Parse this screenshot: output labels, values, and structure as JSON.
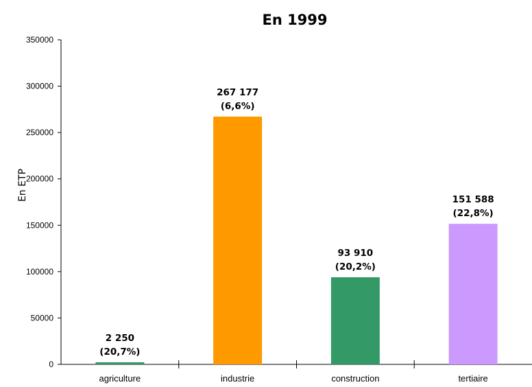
{
  "chart_data": {
    "type": "bar",
    "title": "En 1999",
    "xlabel": "",
    "ylabel": "En ETP",
    "ylim": [
      0,
      350000
    ],
    "yticks": [
      0,
      50000,
      100000,
      150000,
      200000,
      250000,
      300000,
      350000
    ],
    "grid": false,
    "legend": "none",
    "categories": [
      "agriculture",
      "industrie",
      "construction",
      "tertiaire"
    ],
    "values": [
      2250,
      267177,
      93910,
      151588
    ],
    "data_labels": [
      [
        "2 250",
        "(20,7%)"
      ],
      [
        "267 177",
        "(6,6%)"
      ],
      [
        "93 910",
        "(20,2%)"
      ],
      [
        "151 588",
        "(22,8%)"
      ]
    ],
    "colors": [
      "#33996a",
      "#ff9900",
      "#339966",
      "#cc99ff"
    ]
  }
}
